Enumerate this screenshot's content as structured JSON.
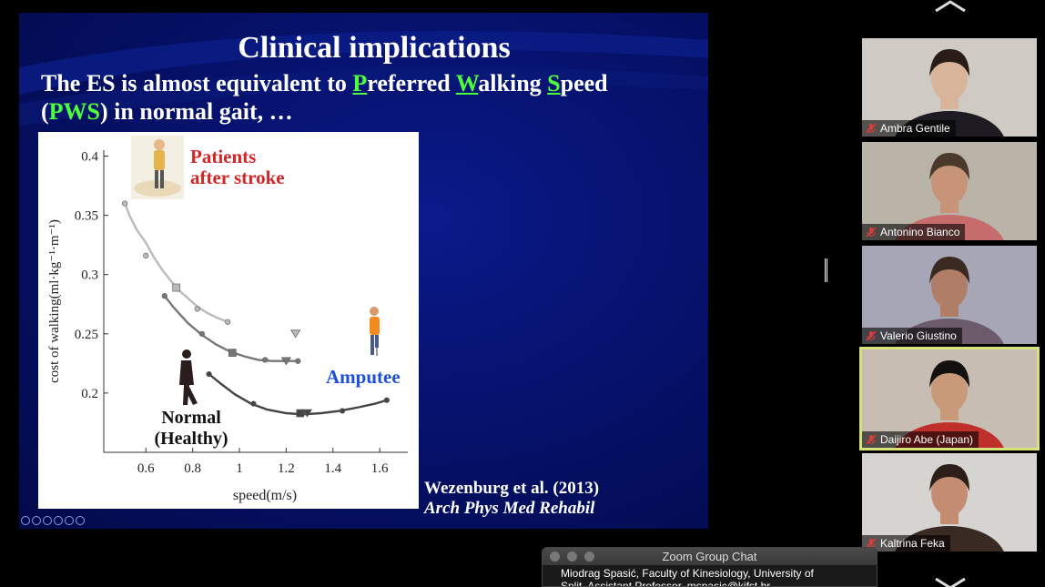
{
  "slide": {
    "title": "Clinical implications",
    "line1_pre": "The ES is almost equivalent to ",
    "p_letter": "P",
    "p_rest": "referred ",
    "w_letter": "W",
    "w_rest": "alking ",
    "s_letter": "S",
    "s_rest": "peed",
    "line2_open": "(",
    "line2_abbr": "PWS",
    "line2_rest": ") in normal gait, …",
    "citation_line1": "Wezenburg et al. (2013)",
    "citation_line2": "Arch Phys Med Rehabil"
  },
  "chart_data": {
    "type": "line",
    "xlabel": "speed(m/s)",
    "ylabel": "cost of walking(ml·kg⁻¹·m⁻¹)",
    "xlim": [
      0.42,
      1.72
    ],
    "ylim": [
      0.15,
      0.405
    ],
    "x_ticks": [
      "0.6",
      "0.8",
      "1",
      "1.2",
      "1.4",
      "1.6"
    ],
    "y_ticks": [
      "0.2",
      "0.25",
      "0.3",
      "0.35",
      "0.4"
    ],
    "labels": {
      "patients_line1": "Patients",
      "patients_line2": "after stroke",
      "amputee": "Amputee",
      "normal_line1": "Normal",
      "normal_line2": "(Healthy)"
    },
    "colors": {
      "patients": "#d42626",
      "amputee": "#1f4fd8",
      "normal": "#111111"
    },
    "series": [
      {
        "key": "patients",
        "color": "#bbbbbb",
        "x": [
          0.51,
          0.53,
          0.56,
          0.6,
          0.63,
          0.67,
          0.71,
          0.74,
          0.78,
          0.82,
          0.86,
          0.9,
          0.95
        ],
        "y": [
          0.36,
          0.35,
          0.338,
          0.327,
          0.316,
          0.304,
          0.294,
          0.287,
          0.28,
          0.273,
          0.268,
          0.264,
          0.26
        ],
        "markers": [
          [
            0.51,
            0.36,
            "o"
          ],
          [
            0.6,
            0.316,
            "o"
          ],
          [
            0.73,
            0.289,
            "s"
          ],
          [
            0.82,
            0.271,
            "o"
          ],
          [
            0.95,
            0.26,
            "o"
          ]
        ],
        "extra_marker": [
          1.24,
          0.25,
          "v"
        ]
      },
      {
        "key": "amputee",
        "color": "#777777",
        "x": [
          0.68,
          0.72,
          0.78,
          0.84,
          0.9,
          0.96,
          1.02,
          1.08,
          1.14,
          1.2,
          1.25
        ],
        "y": [
          0.282,
          0.272,
          0.259,
          0.249,
          0.241,
          0.235,
          0.231,
          0.228,
          0.227,
          0.227,
          0.227
        ],
        "markers": [
          [
            0.68,
            0.282,
            "o"
          ],
          [
            0.84,
            0.25,
            "o"
          ],
          [
            0.97,
            0.234,
            "s"
          ],
          [
            1.11,
            0.228,
            "o"
          ],
          [
            1.2,
            0.227,
            "v"
          ],
          [
            1.25,
            0.227,
            "o"
          ]
        ]
      },
      {
        "key": "normal",
        "color": "#444444",
        "x": [
          0.87,
          0.92,
          0.98,
          1.05,
          1.12,
          1.2,
          1.27,
          1.35,
          1.43,
          1.51,
          1.58,
          1.63
        ],
        "y": [
          0.216,
          0.208,
          0.199,
          0.191,
          0.186,
          0.183,
          0.182,
          0.183,
          0.185,
          0.188,
          0.191,
          0.194
        ],
        "markers": [
          [
            0.87,
            0.216,
            "o"
          ],
          [
            1.06,
            0.191,
            "o"
          ],
          [
            1.26,
            0.183,
            "s"
          ],
          [
            1.29,
            0.183,
            "v"
          ],
          [
            1.44,
            0.185,
            "o"
          ],
          [
            1.63,
            0.194,
            "o"
          ]
        ]
      }
    ]
  },
  "participants": [
    {
      "name": "Ambra Gentile",
      "bg": "#cfcac3",
      "skin": "#d8b49a",
      "hair": "#2a1d17",
      "shirt": "#1e1c22"
    },
    {
      "name": "Antonino Bianco",
      "bg": "#b9b3a8",
      "skin": "#c89478",
      "hair": "#4a3a2c",
      "shirt": "#c76c6c"
    },
    {
      "name": "Valerio Giustino",
      "bg": "#a7a6b7",
      "skin": "#b07e66",
      "hair": "#3b2a22",
      "shirt": "#6b5b6b"
    },
    {
      "name": "Daijiro Abe (Japan)",
      "bg": "#c8bdb3",
      "skin": "#c99a7a",
      "hair": "#151010",
      "shirt": "#c0302a"
    },
    {
      "name": "Kaltrina Feka",
      "bg": "#d6d4d0",
      "skin": "#c48d72",
      "hair": "#2c1e18",
      "shirt": "#3a2a24"
    }
  ],
  "chat": {
    "title": "Zoom Group Chat",
    "message_line1": "Miodrag Spasić, Faculty of Kinesiology, University of",
    "message_line2": "Split, Assistant Professor, mspasic@kifst.hr"
  }
}
